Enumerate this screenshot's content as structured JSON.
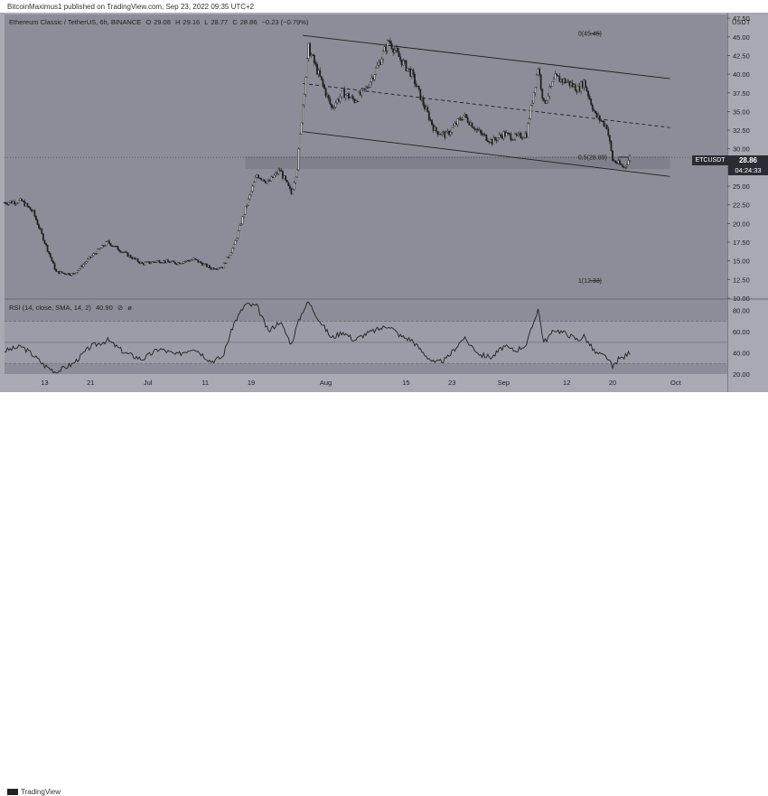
{
  "header": {
    "publisher_line": "BitcoinMaximus1 published on TradingView.com, Sep 23, 2022 09:35 UTC+2"
  },
  "legend": {
    "title": "Ethereum Classic / TetherUS, 6h, BINANCE",
    "o_label": "O",
    "o_value": "29.08",
    "h_label": "H",
    "h_value": "29.16",
    "l_label": "L",
    "l_value": "28.77",
    "c_label": "C",
    "c_value": "28.86",
    "change": "−0.23 (−0.79%)"
  },
  "rsi_legend": {
    "title": "RSI (14, close, SMA, 14, 2)",
    "value": "40.90",
    "extra_1": "⊘",
    "extra_2": "ø"
  },
  "price_axis": {
    "unit": "USDT"
  },
  "current_price": {
    "symbol": "ETCUSDT",
    "value": "28.86",
    "countdown": "04:24:33"
  },
  "footer": {
    "brand": "TradingView"
  },
  "colors": {
    "panel": "#a9a9b4",
    "plot": "#8d8d99",
    "candle": "#1f1f1f",
    "band": "#7e7e8a",
    "line": "#1f1f1f"
  },
  "chart_data": [
    {
      "type": "candlestick",
      "title": "Ethereum Classic / TetherUS, 6h, BINANCE",
      "ylabel": "USDT",
      "ylim": [
        10,
        48
      ],
      "y_ticks": [
        "47.50",
        "45.00",
        "42.50",
        "40.00",
        "37.50",
        "35.00",
        "32.50",
        "30.00",
        "27.50",
        "25.00",
        "22.50",
        "20.00",
        "17.50",
        "15.00",
        "12.50",
        "10.00"
      ],
      "x_ticks": [
        "13",
        "21",
        "Jul",
        "11",
        "19",
        "Aug",
        "15",
        "23",
        "Sep",
        "12",
        "20",
        "Oct"
      ],
      "x_tick_dates": [
        "2022-06-13",
        "2022-06-21",
        "2022-07-01",
        "2022-07-11",
        "2022-07-19",
        "2022-08-01",
        "2022-08-15",
        "2022-08-23",
        "2022-09-01",
        "2022-09-12",
        "2022-09-20",
        "2022-10-01"
      ],
      "close_path": [
        {
          "date": "2022-06-06",
          "close": 22.8
        },
        {
          "date": "2022-06-09",
          "close": 23.0
        },
        {
          "date": "2022-06-11",
          "close": 21.5
        },
        {
          "date": "2022-06-13",
          "close": 17.5
        },
        {
          "date": "2022-06-15",
          "close": 13.5
        },
        {
          "date": "2022-06-18",
          "close": 13.2
        },
        {
          "date": "2022-06-21",
          "close": 15.5
        },
        {
          "date": "2022-06-24",
          "close": 17.5
        },
        {
          "date": "2022-06-27",
          "close": 16.0
        },
        {
          "date": "2022-06-30",
          "close": 14.6
        },
        {
          "date": "2022-07-03",
          "close": 15.0
        },
        {
          "date": "2022-07-06",
          "close": 14.7
        },
        {
          "date": "2022-07-09",
          "close": 15.2
        },
        {
          "date": "2022-07-12",
          "close": 14.0
        },
        {
          "date": "2022-07-14",
          "close": 14.2
        },
        {
          "date": "2022-07-16",
          "close": 17.0
        },
        {
          "date": "2022-07-18",
          "close": 22.0
        },
        {
          "date": "2022-07-20",
          "close": 26.5
        },
        {
          "date": "2022-07-22",
          "close": 25.5
        },
        {
          "date": "2022-07-24",
          "close": 27.2
        },
        {
          "date": "2022-07-26",
          "close": 24.0
        },
        {
          "date": "2022-07-27",
          "close": 27.5
        },
        {
          "date": "2022-07-28",
          "close": 36.0
        },
        {
          "date": "2022-07-29",
          "close": 43.5
        },
        {
          "date": "2022-07-31",
          "close": 39.5
        },
        {
          "date": "2022-08-02",
          "close": 35.5
        },
        {
          "date": "2022-08-04",
          "close": 37.5
        },
        {
          "date": "2022-08-06",
          "close": 36.5
        },
        {
          "date": "2022-08-08",
          "close": 38.0
        },
        {
          "date": "2022-08-10",
          "close": 41.0
        },
        {
          "date": "2022-08-12",
          "close": 44.5
        },
        {
          "date": "2022-08-14",
          "close": 42.0
        },
        {
          "date": "2022-08-16",
          "close": 40.0
        },
        {
          "date": "2022-08-18",
          "close": 36.0
        },
        {
          "date": "2022-08-20",
          "close": 32.5
        },
        {
          "date": "2022-08-22",
          "close": 31.8
        },
        {
          "date": "2022-08-25",
          "close": 34.5
        },
        {
          "date": "2022-08-28",
          "close": 32.0
        },
        {
          "date": "2022-08-30",
          "close": 31.0
        },
        {
          "date": "2022-09-01",
          "close": 32.0
        },
        {
          "date": "2022-09-03",
          "close": 31.5
        },
        {
          "date": "2022-09-05",
          "close": 32.0
        },
        {
          "date": "2022-09-07",
          "close": 41.0
        },
        {
          "date": "2022-09-08",
          "close": 36.0
        },
        {
          "date": "2022-09-10",
          "close": 39.5
        },
        {
          "date": "2022-09-12",
          "close": 39.0
        },
        {
          "date": "2022-09-14",
          "close": 38.0
        },
        {
          "date": "2022-09-15",
          "close": 39.0
        },
        {
          "date": "2022-09-17",
          "close": 34.5
        },
        {
          "date": "2022-09-19",
          "close": 33.0
        },
        {
          "date": "2022-09-20",
          "close": 28.5
        },
        {
          "date": "2022-09-21",
          "close": 28.0
        },
        {
          "date": "2022-09-22",
          "close": 27.5
        },
        {
          "date": "2022-09-23",
          "close": 28.86
        }
      ],
      "annotations": {
        "fib_top": {
          "label": "0(45.45)",
          "value": 45.45
        },
        "fib_mid": {
          "label": "0.5(28.89)",
          "value": 28.89
        },
        "fib_bottom": {
          "label": "1(12.33)",
          "value": 12.33
        },
        "channel_upper": [
          {
            "date": "2022-07-28",
            "price": 45.2
          },
          {
            "date": "2022-09-30",
            "price": 39.4
          }
        ],
        "channel_lower": [
          {
            "date": "2022-07-28",
            "price": 32.3
          },
          {
            "date": "2022-09-30",
            "price": 26.3
          }
        ],
        "channel_mid": [
          {
            "date": "2022-07-28",
            "price": 38.75
          },
          {
            "date": "2022-09-30",
            "price": 32.85
          }
        ],
        "support_zone": [
          27.3,
          29.0
        ]
      }
    },
    {
      "type": "line",
      "title": "RSI (14, close, SMA, 14, 2)",
      "ylim": [
        20,
        90
      ],
      "y_ticks": [
        "80.00",
        "60.00",
        "40.00",
        "20.00"
      ],
      "overbought": 70,
      "oversold": 30,
      "midline": 50,
      "series": [
        {
          "values_by_date": [
            {
              "date": "2022-06-06",
              "v": 42
            },
            {
              "date": "2022-06-09",
              "v": 46
            },
            {
              "date": "2022-06-11",
              "v": 38
            },
            {
              "date": "2022-06-13",
              "v": 28
            },
            {
              "date": "2022-06-15",
              "v": 22
            },
            {
              "date": "2022-06-18",
              "v": 30
            },
            {
              "date": "2022-06-21",
              "v": 46
            },
            {
              "date": "2022-06-24",
              "v": 52
            },
            {
              "date": "2022-06-27",
              "v": 40
            },
            {
              "date": "2022-06-30",
              "v": 34
            },
            {
              "date": "2022-07-03",
              "v": 44
            },
            {
              "date": "2022-07-06",
              "v": 38
            },
            {
              "date": "2022-07-09",
              "v": 45
            },
            {
              "date": "2022-07-12",
              "v": 32
            },
            {
              "date": "2022-07-14",
              "v": 36
            },
            {
              "date": "2022-07-16",
              "v": 68
            },
            {
              "date": "2022-07-18",
              "v": 86
            },
            {
              "date": "2022-07-20",
              "v": 84
            },
            {
              "date": "2022-07-22",
              "v": 60
            },
            {
              "date": "2022-07-24",
              "v": 70
            },
            {
              "date": "2022-07-26",
              "v": 48
            },
            {
              "date": "2022-07-27",
              "v": 66
            },
            {
              "date": "2022-07-28",
              "v": 80
            },
            {
              "date": "2022-07-29",
              "v": 88
            },
            {
              "date": "2022-07-31",
              "v": 70
            },
            {
              "date": "2022-08-02",
              "v": 54
            },
            {
              "date": "2022-08-04",
              "v": 60
            },
            {
              "date": "2022-08-06",
              "v": 52
            },
            {
              "date": "2022-08-08",
              "v": 58
            },
            {
              "date": "2022-08-10",
              "v": 62
            },
            {
              "date": "2022-08-12",
              "v": 66
            },
            {
              "date": "2022-08-14",
              "v": 56
            },
            {
              "date": "2022-08-16",
              "v": 52
            },
            {
              "date": "2022-08-18",
              "v": 40
            },
            {
              "date": "2022-08-20",
              "v": 30
            },
            {
              "date": "2022-08-22",
              "v": 34
            },
            {
              "date": "2022-08-25",
              "v": 54
            },
            {
              "date": "2022-08-28",
              "v": 38
            },
            {
              "date": "2022-08-30",
              "v": 36
            },
            {
              "date": "2022-09-01",
              "v": 46
            },
            {
              "date": "2022-09-03",
              "v": 42
            },
            {
              "date": "2022-09-05",
              "v": 48
            },
            {
              "date": "2022-09-07",
              "v": 82
            },
            {
              "date": "2022-09-08",
              "v": 50
            },
            {
              "date": "2022-09-10",
              "v": 62
            },
            {
              "date": "2022-09-12",
              "v": 58
            },
            {
              "date": "2022-09-14",
              "v": 52
            },
            {
              "date": "2022-09-15",
              "v": 56
            },
            {
              "date": "2022-09-17",
              "v": 40
            },
            {
              "date": "2022-09-19",
              "v": 36
            },
            {
              "date": "2022-09-20",
              "v": 26
            },
            {
              "date": "2022-09-21",
              "v": 34
            },
            {
              "date": "2022-09-22",
              "v": 36
            },
            {
              "date": "2022-09-23",
              "v": 40.9
            }
          ]
        }
      ]
    }
  ]
}
